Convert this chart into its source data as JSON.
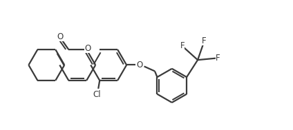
{
  "bg_color": "#ffffff",
  "line_color": "#3a3a3a",
  "line_width": 1.6,
  "font_size": 8.5,
  "figsize": [
    4.24,
    1.89
  ],
  "dpi": 100,
  "r": 0.52,
  "xlim": [
    0.0,
    8.5
  ],
  "ylim": [
    0.0,
    3.6
  ]
}
